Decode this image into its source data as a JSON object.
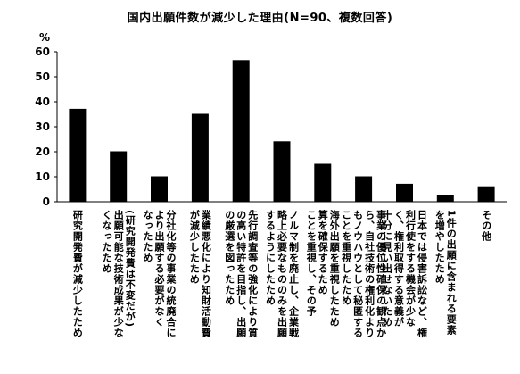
{
  "chart_data": {
    "type": "bar",
    "title": "国内出願件数が減少した理由(N=90、複数回答)",
    "ylabel": "%",
    "xlabel": "",
    "ylim": [
      0,
      60
    ],
    "yticks": [
      0,
      10,
      20,
      30,
      40,
      50,
      60
    ],
    "grid": false,
    "legend": "none",
    "categories": [
      "研究開発費が減少したため",
      "(研究開発費は不変だが)\n出願可能な技術成果が少な\nくなったため",
      "分社化等の事業の統廃合に\nより出願する必要がなく\nなったため",
      "業績悪化により知財活動費\nが減少したため",
      "先行調査等の強化により質\nの高い特許を目指し、出願\nの厳選を図ったため",
      "ノルマ制を廃止し、企業戦\n略上必要なもののみを出願\nするようにしたため",
      "海外出願を重視したため\n算を確保するため\nことを重視し、その予",
      "事業の優位性確保の観点か\nら、自社技術の権利化より\nもノウハウとして秘匿する\nことを重視したため",
      "日本では侵害訴訟など、権\n利行使をする機会が少な\nく、権利取得する意義が\n十分に見い出せないため",
      "1件の出願に含まれる要素\nを増やしたため",
      "その他"
    ],
    "values": [
      37,
      20,
      10,
      35,
      56.5,
      24,
      15,
      10,
      7,
      2.5,
      6
    ],
    "colors": {
      "bar": "#000000",
      "plot_background": "#ffffff",
      "axis": "#000000"
    }
  }
}
